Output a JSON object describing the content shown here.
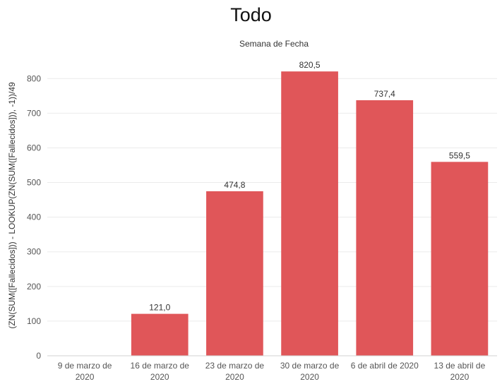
{
  "chart_data": {
    "type": "bar",
    "title": "Todo",
    "xlabel": "Semana de Fecha",
    "ylabel": "(ZN(SUM([Fallecidos])) - LOOKUP(ZN(SUM([Fallecidos])), -1))/49",
    "categories": [
      [
        "9 de marzo de",
        "2020"
      ],
      [
        "16 de marzo de",
        "2020"
      ],
      [
        "23 de marzo de",
        "2020"
      ],
      [
        "30 de marzo de",
        "2020"
      ],
      [
        "6 de abril de 2020"
      ],
      [
        "13 de abril de",
        "2020"
      ]
    ],
    "values": [
      null,
      121.0,
      474.8,
      820.5,
      737.4,
      559.5
    ],
    "data_labels": [
      "",
      "121,0",
      "474,8",
      "820,5",
      "737,4",
      "559,5"
    ],
    "yticks": [
      0,
      100,
      200,
      300,
      400,
      500,
      600,
      700,
      800
    ],
    "ylim": [
      0,
      880
    ],
    "grid": true,
    "colors": {
      "bar": "#e05659",
      "grid": "#ebebeb",
      "axis": "#d0d0d0",
      "text": "#333333",
      "tick": "#555555"
    }
  }
}
